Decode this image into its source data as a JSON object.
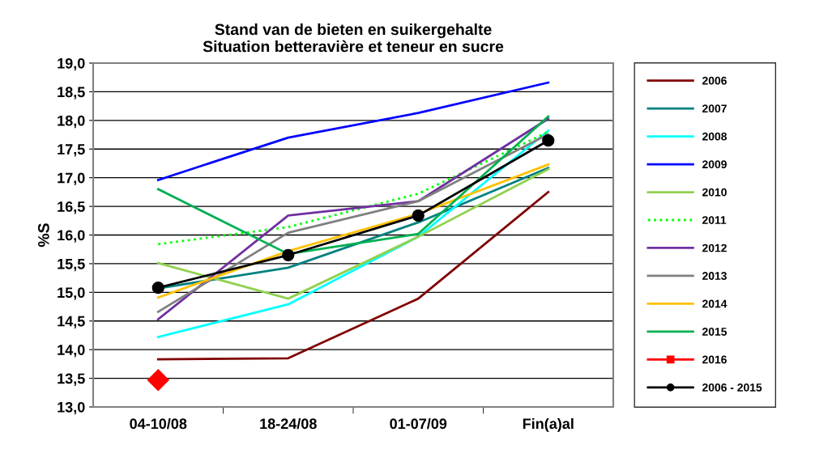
{
  "chart_data": {
    "type": "line",
    "title": "Stand van de bieten en suikergehalte\nSituation betteravière et teneur en sucre",
    "ylabel": "%S",
    "categories": [
      "04-10/08",
      "18-24/08",
      "01-07/09",
      "Fin(a)al"
    ],
    "series": [
      {
        "name": "2006",
        "color": "#800000",
        "values": [
          13.83,
          13.85,
          14.89,
          16.75
        ]
      },
      {
        "name": "2007",
        "color": "#008080",
        "values": [
          15.07,
          15.43,
          16.22,
          17.17
        ]
      },
      {
        "name": "2008",
        "color": "#00ffff",
        "values": [
          14.22,
          14.79,
          15.97,
          17.82
        ]
      },
      {
        "name": "2009",
        "color": "#0000ff",
        "values": [
          16.96,
          17.7,
          18.13,
          18.66
        ]
      },
      {
        "name": "2010",
        "color": "#92d050",
        "values": [
          15.51,
          14.89,
          15.97,
          17.15
        ]
      },
      {
        "name": "2011",
        "color": "#00ff00",
        "values": [
          15.84,
          16.14,
          16.72,
          17.8
        ],
        "line_style": "dotted"
      },
      {
        "name": "2012",
        "color": "#7030a0",
        "values": [
          14.53,
          16.34,
          16.59,
          18.03
        ]
      },
      {
        "name": "2013",
        "color": "#808080",
        "values": [
          14.66,
          16.04,
          16.59,
          17.76
        ]
      },
      {
        "name": "2014",
        "color": "#ffc000",
        "values": [
          14.91,
          15.72,
          16.37,
          17.23
        ]
      },
      {
        "name": "2015",
        "color": "#00b050",
        "values": [
          16.8,
          15.67,
          16.02,
          18.07
        ]
      },
      {
        "name": "2016",
        "color": "#ff0000",
        "values": [
          13.47,
          null,
          null,
          null
        ],
        "marker": "diamond"
      },
      {
        "name": "2006 - 2015",
        "color": "#000000",
        "values": [
          15.08,
          15.65,
          16.34,
          17.65
        ],
        "marker": "circle"
      }
    ],
    "ylim": [
      13,
      19
    ],
    "yticks": [
      {
        "value": 13,
        "label": "13,0"
      },
      {
        "value": 13.5,
        "label": "13,5"
      },
      {
        "value": 14,
        "label": "14,0"
      },
      {
        "value": 14.5,
        "label": "14,5"
      },
      {
        "value": 15,
        "label": "15,0"
      },
      {
        "value": 15.5,
        "label": "15,5"
      },
      {
        "value": 16,
        "label": "16,0"
      },
      {
        "value": 16.5,
        "label": "16,5"
      },
      {
        "value": 17,
        "label": "17,0"
      },
      {
        "value": 17.5,
        "label": "17,5"
      },
      {
        "value": 18,
        "label": "18,0"
      },
      {
        "value": 18.5,
        "label": "18,5"
      },
      {
        "value": 19,
        "label": "19,0"
      }
    ],
    "grid": "y",
    "legend": "right",
    "line_style": "solid",
    "marker": "none"
  }
}
